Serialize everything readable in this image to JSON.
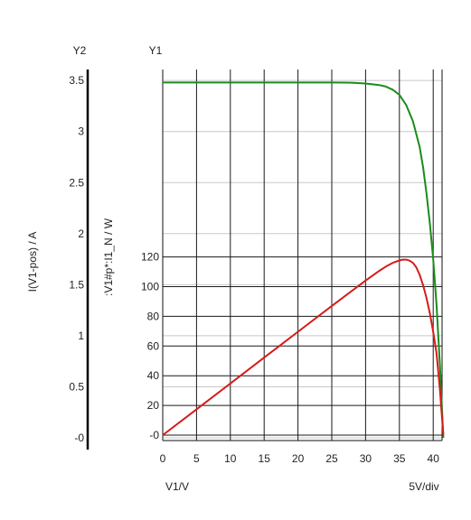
{
  "chart_data": {
    "type": "line",
    "y2_title": "Y2",
    "y1_title": "Y1",
    "y2_label": "I(V1-pos) / A",
    "y1_label": ":V1#p*:I1_N / W",
    "xlabel": "V1/V",
    "x_scale_note": "5V/div",
    "xlim": [
      0,
      42
    ],
    "y1lim": [
      -2,
      125
    ],
    "y2lim": [
      -0.05,
      3.6
    ],
    "x_ticks": [
      "0",
      "5",
      "10",
      "15",
      "20",
      "25",
      "30",
      "35",
      "40"
    ],
    "y1_ticks": [
      "-0",
      "20",
      "40",
      "60",
      "80",
      "100",
      "120"
    ],
    "y2_ticks": [
      "-0",
      "0.5",
      "1",
      "1.5",
      "2",
      "2.5",
      "3",
      "3.5"
    ],
    "grid": true,
    "series": [
      {
        "axis": "y2",
        "color": "#1a8c1a",
        "x": [
          0,
          5,
          10,
          15,
          20,
          25,
          28,
          30,
          32,
          33,
          34,
          35,
          36,
          37,
          38,
          38.5,
          39,
          39.5,
          40,
          40.5,
          41,
          41.5
        ],
        "y": [
          3.48,
          3.48,
          3.48,
          3.48,
          3.48,
          3.48,
          3.478,
          3.47,
          3.455,
          3.44,
          3.41,
          3.36,
          3.26,
          3.1,
          2.85,
          2.65,
          2.4,
          2.1,
          1.75,
          1.3,
          0.7,
          0.0
        ]
      },
      {
        "axis": "y1",
        "color": "#d41c1c",
        "x": [
          0,
          5,
          10,
          15,
          20,
          25,
          30,
          32,
          33,
          34,
          35,
          35.5,
          36,
          36.5,
          37,
          37.5,
          38,
          38.5,
          39,
          39.5,
          40,
          40.5,
          41,
          41.5
        ],
        "y": [
          0,
          17.4,
          34.8,
          52.2,
          69.6,
          87.0,
          104.1,
          110.6,
          113.5,
          116.0,
          117.6,
          118.2,
          118.2,
          117.5,
          116.0,
          113.0,
          108.0,
          101.0,
          92.6,
          82.0,
          69.5,
          55.0,
          30.0,
          0.0
        ]
      }
    ]
  }
}
